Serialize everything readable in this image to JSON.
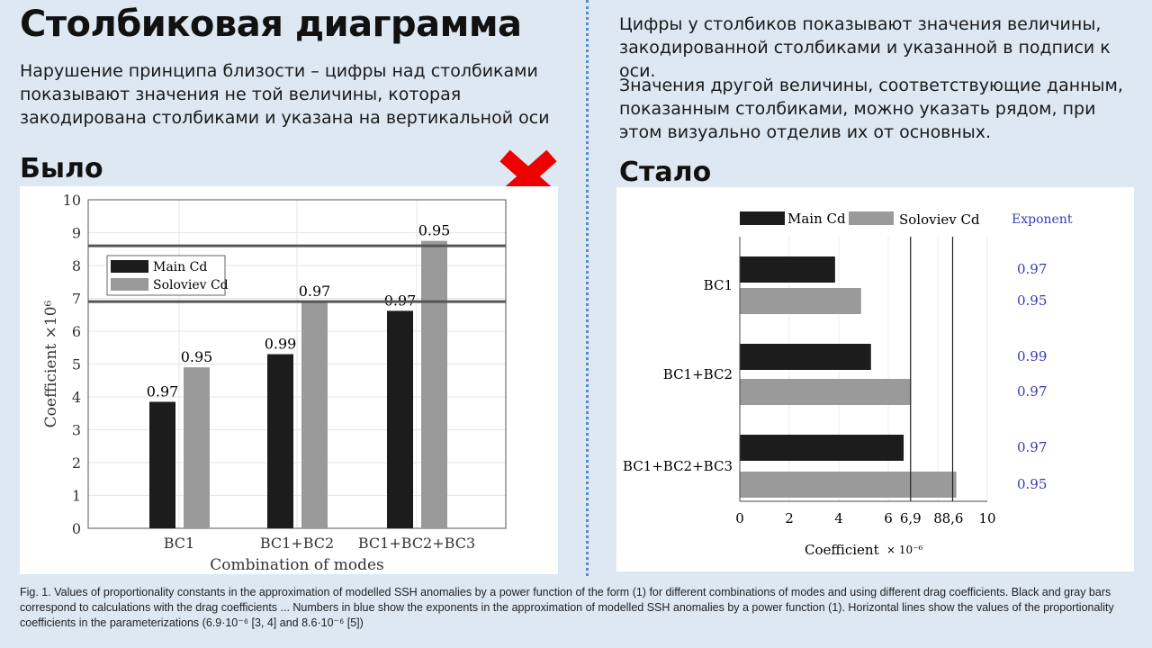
{
  "left": {
    "title": "Столбиковая диаграмма",
    "text": "Нарушение принципа близости – цифры над столбиками показывают значения не той величины, которая закодирована столбиками и указана на вертикальной оси",
    "heading": "Было",
    "mark_icon": "red-cross-icon"
  },
  "right": {
    "text1": "Цифры у столбиков показывают значения величины, закодированной столбиками и указанной в подписи к оси.",
    "text2": "Значения другой величины, соответствующие данным, показанным столбиками, можно указать рядом, при этом визуально отделив их от основных.",
    "heading": "Стало"
  },
  "caption": "Fig. 1. Values of proportionality constants in the approximation of modelled SSH anomalies by a power function of the form (1) for different combinations of modes and using different drag coefficients. Black and gray bars correspond to calculations with the drag coefficients ... Numbers in blue show the exponents in the approximation of modelled SSH anomalies by a power function (1). Horizontal lines show the values of the proportionality coefficients in the parameterizations (6.9·10⁻⁶ [3, 4]  and 8.6·10⁻⁶ [5])",
  "colors": {
    "main": "#1c1c1c",
    "soloviev": "#9a9a9a",
    "exponent": "#3a3ab8",
    "reference_line": "#555555",
    "bad": "#ee0000"
  },
  "chart_data": [
    {
      "type": "bar",
      "orientation": "vertical",
      "categories": [
        "BC1",
        "BC1+BC2",
        "BC1+BC2+BC3"
      ],
      "series": [
        {
          "name": "Main Cd",
          "values": [
            3.85,
            5.3,
            6.62
          ],
          "labels": [
            "0.97",
            "0.99",
            "0.97"
          ]
        },
        {
          "name": "Soloviev Cd",
          "values": [
            4.9,
            6.9,
            8.75
          ],
          "labels": [
            "0.95",
            "0.97",
            "0.95"
          ]
        }
      ],
      "reference_lines": [
        6.9,
        8.6
      ],
      "xlabel": "Combination of modes",
      "ylabel": "Coefficient ×10⁶",
      "ylim": [
        0,
        10
      ],
      "yticks": [
        "0",
        "1",
        "2",
        "3",
        "4",
        "5",
        "6",
        "7",
        "8",
        "9",
        "10"
      ],
      "grid": true,
      "legend_placement": "upper-left"
    },
    {
      "type": "bar",
      "orientation": "horizontal",
      "categories": [
        "BC1",
        "BC1+BC2",
        "BC1+BC2+BC3"
      ],
      "series": [
        {
          "name": "Main Cd",
          "values": [
            3.85,
            5.3,
            6.62
          ],
          "exponents": [
            "0.97",
            "0.99",
            "0.97"
          ]
        },
        {
          "name": "Soloviev Cd",
          "values": [
            4.9,
            6.9,
            8.75
          ],
          "exponents": [
            "0.95",
            "0.97",
            "0.95"
          ]
        }
      ],
      "reference_lines": [
        6.9,
        8.6
      ],
      "xlabel": "Coefficient",
      "xlabel_unit": "× 10⁻⁶",
      "exponent_header": "Exponent",
      "xlim": [
        0,
        10
      ],
      "xticks": [
        {
          "v": 0,
          "t": "0"
        },
        {
          "v": 2,
          "t": "2"
        },
        {
          "v": 4,
          "t": "4"
        },
        {
          "v": 6,
          "t": "6"
        },
        {
          "v": 6.9,
          "t": "6,9"
        },
        {
          "v": 8,
          "t": "8"
        },
        {
          "v": 8.6,
          "t": "8,6"
        },
        {
          "v": 10,
          "t": "10"
        }
      ],
      "grid": true,
      "legend_placement": "top"
    }
  ]
}
